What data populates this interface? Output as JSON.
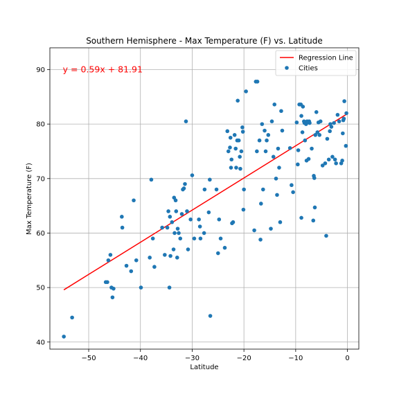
{
  "chart_data": {
    "type": "scatter",
    "title": "Southern Hemisphere - Max Temperature (F) vs. Latitude",
    "xlabel": "Latitude",
    "ylabel": "Max Temperature (F)",
    "xlim": [
      -57.5,
      2.2
    ],
    "ylim": [
      38.7,
      94
    ],
    "xticks": [
      -50,
      -40,
      -30,
      -20,
      -10,
      0
    ],
    "xtick_labels": [
      "−50",
      "−40",
      "−30",
      "−20",
      "−10",
      "0"
    ],
    "yticks": [
      40,
      50,
      60,
      70,
      80,
      90
    ],
    "ytick_labels": [
      "40",
      "50",
      "60",
      "70",
      "80",
      "90"
    ],
    "grid": true,
    "legend_position": "top-right",
    "colors": {
      "points": "#1f77b4",
      "regression": "#ff0000"
    },
    "regression": {
      "name": "Regression Line",
      "slope": 0.59,
      "intercept": 81.91,
      "x_range": [
        -54.8,
        -0.2
      ],
      "equation_text": "y = 0.59x + 81.91",
      "equation_anchor": [
        -55,
        90
      ]
    },
    "series": [
      {
        "name": "Cities",
        "points": [
          [
            -54.8,
            41
          ],
          [
            -53.2,
            44.5
          ],
          [
            -46.4,
            51
          ],
          [
            -46.7,
            51
          ],
          [
            -46.2,
            55
          ],
          [
            -45.8,
            56
          ],
          [
            -45.6,
            50
          ],
          [
            -45.2,
            49.8
          ],
          [
            -45.4,
            48.2
          ],
          [
            -43.6,
            63
          ],
          [
            -43.5,
            61
          ],
          [
            -42.7,
            54
          ],
          [
            -41.8,
            53
          ],
          [
            -41.3,
            66
          ],
          [
            -40.8,
            55
          ],
          [
            -39.9,
            50
          ],
          [
            -38.2,
            55.5
          ],
          [
            -37.9,
            69.8
          ],
          [
            -37.6,
            59
          ],
          [
            -37.3,
            53.8
          ],
          [
            -35.8,
            61
          ],
          [
            -35.3,
            56
          ],
          [
            -34.8,
            61
          ],
          [
            -34.6,
            64
          ],
          [
            -34.4,
            50
          ],
          [
            -34.3,
            63
          ],
          [
            -34.2,
            55.8
          ],
          [
            -33.9,
            62
          ],
          [
            -33.6,
            57
          ],
          [
            -33.4,
            60
          ],
          [
            -33.5,
            66.5
          ],
          [
            -33.2,
            66
          ],
          [
            -33.1,
            64
          ],
          [
            -32.9,
            55.5
          ],
          [
            -32.8,
            60.8
          ],
          [
            -32.6,
            60
          ],
          [
            -32.3,
            59
          ],
          [
            -32,
            63.5
          ],
          [
            -31.8,
            68
          ],
          [
            -31.6,
            68.2
          ],
          [
            -31.4,
            69
          ],
          [
            -31.2,
            80.5
          ],
          [
            -31,
            64
          ],
          [
            -30.8,
            57
          ],
          [
            -30.3,
            62.5
          ],
          [
            -30,
            70.6
          ],
          [
            -29.6,
            59
          ],
          [
            -28.7,
            62.5
          ],
          [
            -28.5,
            61.2
          ],
          [
            -28.4,
            59
          ],
          [
            -27.7,
            60
          ],
          [
            -27.6,
            68
          ],
          [
            -26.8,
            63.8
          ],
          [
            -26.6,
            69.8
          ],
          [
            -26.5,
            44.8
          ],
          [
            -25.3,
            68
          ],
          [
            -25,
            56.3
          ],
          [
            -24.8,
            62.5
          ],
          [
            -24.5,
            59
          ],
          [
            -23.7,
            57.3
          ],
          [
            -23.2,
            78.7
          ],
          [
            -23,
            75
          ],
          [
            -22.7,
            75.7
          ],
          [
            -22.6,
            77.5
          ],
          [
            -22.4,
            73.5
          ],
          [
            -22.5,
            72
          ],
          [
            -22.3,
            61.8
          ],
          [
            -22.1,
            62
          ],
          [
            -21.8,
            78
          ],
          [
            -21.6,
            75.5
          ],
          [
            -21.5,
            72
          ],
          [
            -21.3,
            77
          ],
          [
            -21.2,
            84.3
          ],
          [
            -21,
            77
          ],
          [
            -20.7,
            71.8
          ],
          [
            -20.8,
            74
          ],
          [
            -20.5,
            75
          ],
          [
            -20.3,
            79.4
          ],
          [
            -20.2,
            78.6
          ],
          [
            -20.1,
            64.3
          ],
          [
            -20,
            68
          ],
          [
            -19.6,
            86
          ],
          [
            -18,
            60.5
          ],
          [
            -17.7,
            87.8
          ],
          [
            -17.4,
            87.8
          ],
          [
            -17.5,
            75
          ],
          [
            -17,
            77
          ],
          [
            -16.8,
            58.8
          ],
          [
            -16.7,
            65.4
          ],
          [
            -16.5,
            80
          ],
          [
            -16.3,
            68
          ],
          [
            -16,
            78.8
          ],
          [
            -15.8,
            75
          ],
          [
            -15.6,
            77
          ],
          [
            -15.3,
            78
          ],
          [
            -14.8,
            60.8
          ],
          [
            -14.6,
            80.5
          ],
          [
            -14.3,
            74
          ],
          [
            -14.1,
            83.6
          ],
          [
            -13.8,
            70
          ],
          [
            -13.6,
            67
          ],
          [
            -13.4,
            75.5
          ],
          [
            -13.2,
            72
          ],
          [
            -13,
            62
          ],
          [
            -12.8,
            82.4
          ],
          [
            -12.6,
            78.8
          ],
          [
            -11.1,
            75.6
          ],
          [
            -10.8,
            68.8
          ],
          [
            -10.5,
            67.5
          ],
          [
            -9.8,
            80.3
          ],
          [
            -9.5,
            75.2
          ],
          [
            -9.6,
            72.6
          ],
          [
            -9.3,
            83.6
          ],
          [
            -9,
            83.6
          ],
          [
            -8.9,
            81.5
          ],
          [
            -8.7,
            78.5
          ],
          [
            -8.9,
            62.8
          ],
          [
            -8.6,
            83.2
          ],
          [
            -8.4,
            80.5
          ],
          [
            -8.3,
            80.2
          ],
          [
            -8.2,
            77
          ],
          [
            -7.9,
            73.3
          ],
          [
            -8,
            80
          ],
          [
            -7.8,
            80.5
          ],
          [
            -7.6,
            80.3
          ],
          [
            -7.5,
            73.6
          ],
          [
            -7.4,
            80.5
          ],
          [
            -7.3,
            80.2
          ],
          [
            -6.9,
            75.5
          ],
          [
            -6.6,
            62.3
          ],
          [
            -6.5,
            70.5
          ],
          [
            -6.3,
            64.7
          ],
          [
            -6.4,
            70.1
          ],
          [
            -6.2,
            78
          ],
          [
            -6,
            82.2
          ],
          [
            -5.8,
            78.5
          ],
          [
            -5.6,
            80.3
          ],
          [
            -5.4,
            78
          ],
          [
            -5.2,
            80.5
          ],
          [
            -4.8,
            72.4
          ],
          [
            -4.3,
            72.8
          ],
          [
            -4.1,
            59.5
          ],
          [
            -3.9,
            77.3
          ],
          [
            -3.6,
            73.5
          ],
          [
            -3.4,
            78.7
          ],
          [
            -3.3,
            80
          ],
          [
            -3.1,
            79.5
          ],
          [
            -2.9,
            74
          ],
          [
            -2.6,
            80.2
          ],
          [
            -2.4,
            73.5
          ],
          [
            -2.2,
            72.8
          ],
          [
            -1.9,
            81.7
          ],
          [
            -1.6,
            80.5
          ],
          [
            -1.2,
            72.8
          ],
          [
            -1,
            73.3
          ],
          [
            -0.9,
            78.3
          ],
          [
            -0.8,
            80.7
          ],
          [
            -0.7,
            81
          ],
          [
            -0.6,
            84.2
          ],
          [
            -0.3,
            76
          ],
          [
            -0.2,
            82
          ]
        ]
      }
    ]
  }
}
